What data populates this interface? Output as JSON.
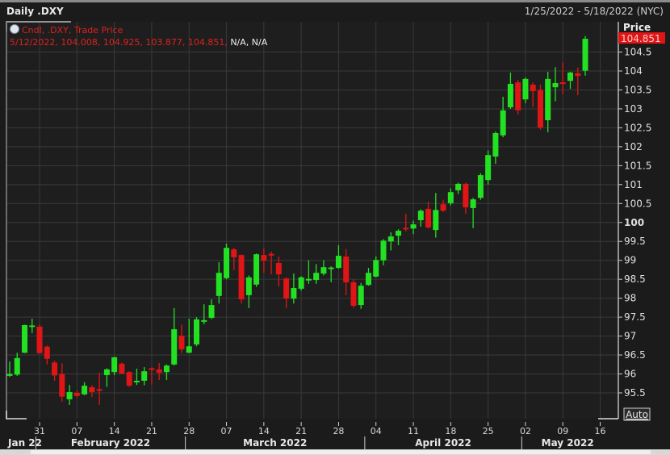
{
  "header": {
    "title": "Daily .DXY",
    "date_range": "1/25/2022 - 5/18/2022 (NYC)"
  },
  "legend": {
    "line1": "Cndl, .DXY, Trade Price",
    "line2_values": "5/12/2022, 104.008, 104.925, 103.877, 104.851,",
    "line2_na": "N/A, N/A",
    "icon": "clock-icon"
  },
  "axis": {
    "price_label": "Price",
    "last_price": "104.851",
    "auto_button": "Auto"
  },
  "colors": {
    "up": "#22e022",
    "down": "#e01515",
    "background": "#1e1e1e",
    "grid": "#3a3a3a",
    "last_price_bg": "#e01515"
  },
  "chart_data": {
    "type": "candlestick",
    "title": "Daily .DXY",
    "ylabel": "Price",
    "ylim": [
      95.0,
      105.0
    ],
    "grid": true,
    "yticks": [
      "95.5",
      "96",
      "96.5",
      "97",
      "97.5",
      "98",
      "98.5",
      "99",
      "99.5",
      "100",
      "100.5",
      "101",
      "101.5",
      "102",
      "102.5",
      "103",
      "103.5",
      "104",
      "104.5"
    ],
    "xticks": [
      {
        "date": "2022-01-31",
        "label": "31"
      },
      {
        "date": "2022-02-07",
        "label": "07"
      },
      {
        "date": "2022-02-14",
        "label": "14"
      },
      {
        "date": "2022-02-21",
        "label": "21"
      },
      {
        "date": "2022-02-28",
        "label": "28"
      },
      {
        "date": "2022-03-07",
        "label": "07"
      },
      {
        "date": "2022-03-14",
        "label": "14"
      },
      {
        "date": "2022-03-21",
        "label": "21"
      },
      {
        "date": "2022-03-28",
        "label": "28"
      },
      {
        "date": "2022-04-04",
        "label": "04"
      },
      {
        "date": "2022-04-11",
        "label": "11"
      },
      {
        "date": "2022-04-18",
        "label": "18"
      },
      {
        "date": "2022-04-25",
        "label": "25"
      },
      {
        "date": "2022-05-02",
        "label": "02"
      },
      {
        "date": "2022-05-09",
        "label": "09"
      },
      {
        "date": "2022-05-16",
        "label": "16"
      }
    ],
    "months": [
      {
        "label": "Jan 22",
        "start": "2022-01-25",
        "end": "2022-01-28"
      },
      {
        "label": "February 2022",
        "start": "2022-01-31",
        "end": "2022-02-25"
      },
      {
        "label": "March 2022",
        "start": "2022-02-28",
        "end": "2022-03-31"
      },
      {
        "label": "April 2022",
        "start": "2022-04-01",
        "end": "2022-04-29"
      },
      {
        "label": "May 2022",
        "start": "2022-05-02",
        "end": "2022-05-18"
      }
    ],
    "columns": [
      "date",
      "open",
      "high",
      "low",
      "close"
    ],
    "candles": [
      [
        "2022-01-25",
        95.95,
        96.33,
        95.92,
        96.0
      ],
      [
        "2022-01-26",
        95.98,
        96.56,
        95.95,
        96.42
      ],
      [
        "2022-01-27",
        96.56,
        97.3,
        96.55,
        97.29
      ],
      [
        "2022-01-28",
        97.25,
        97.46,
        97.08,
        97.28
      ],
      [
        "2022-01-31",
        97.25,
        97.31,
        96.53,
        96.55
      ],
      [
        "2022-02-01",
        96.72,
        96.75,
        96.25,
        96.4
      ],
      [
        "2022-02-02",
        96.3,
        96.35,
        95.82,
        95.96
      ],
      [
        "2022-02-03",
        96.0,
        96.28,
        95.27,
        95.4
      ],
      [
        "2022-02-04",
        95.33,
        95.71,
        95.18,
        95.52
      ],
      [
        "2022-02-07",
        95.5,
        95.55,
        95.38,
        95.42
      ],
      [
        "2022-02-08",
        95.46,
        95.78,
        95.44,
        95.69
      ],
      [
        "2022-02-09",
        95.65,
        95.7,
        95.39,
        95.52
      ],
      [
        "2022-02-10",
        95.6,
        96.03,
        95.18,
        95.56
      ],
      [
        "2022-02-11",
        95.97,
        96.15,
        95.66,
        96.12
      ],
      [
        "2022-02-14",
        96.05,
        96.46,
        95.97,
        96.44
      ],
      [
        "2022-02-15",
        96.27,
        96.3,
        96.0,
        96.01
      ],
      [
        "2022-02-16",
        96.05,
        96.07,
        95.66,
        95.69
      ],
      [
        "2022-02-17",
        95.78,
        96.14,
        95.71,
        95.82
      ],
      [
        "2022-02-18",
        95.82,
        96.18,
        95.7,
        96.07
      ],
      [
        "2022-02-21",
        96.15,
        96.17,
        95.72,
        96.12
      ],
      [
        "2022-02-22",
        96.12,
        96.29,
        95.84,
        96.03
      ],
      [
        "2022-02-23",
        96.05,
        96.25,
        95.84,
        96.22
      ],
      [
        "2022-02-24",
        96.25,
        97.74,
        96.22,
        97.18
      ],
      [
        "2022-02-25",
        97.01,
        97.3,
        96.55,
        96.65
      ],
      [
        "2022-02-28",
        96.56,
        97.46,
        96.55,
        96.73
      ],
      [
        "2022-03-01",
        96.78,
        97.5,
        96.73,
        97.44
      ],
      [
        "2022-03-02",
        97.38,
        97.84,
        97.31,
        97.42
      ],
      [
        "2022-03-03",
        97.48,
        97.97,
        97.45,
        97.82
      ],
      [
        "2022-03-04",
        98.06,
        98.95,
        97.86,
        98.67
      ],
      [
        "2022-03-07",
        98.53,
        99.44,
        98.5,
        99.33
      ],
      [
        "2022-03-08",
        99.29,
        99.33,
        98.74,
        99.08
      ],
      [
        "2022-03-09",
        99.14,
        99.16,
        97.86,
        97.97
      ],
      [
        "2022-03-10",
        98.08,
        98.6,
        97.74,
        98.55
      ],
      [
        "2022-03-11",
        98.36,
        99.18,
        98.3,
        99.16
      ],
      [
        "2022-03-14",
        99.14,
        99.31,
        98.67,
        98.99
      ],
      [
        "2022-03-15",
        99.17,
        99.23,
        98.63,
        99.14
      ],
      [
        "2022-03-16",
        98.93,
        99.1,
        98.31,
        98.63
      ],
      [
        "2022-03-17",
        98.52,
        98.55,
        97.74,
        97.99
      ],
      [
        "2022-03-18",
        97.99,
        98.65,
        97.86,
        98.27
      ],
      [
        "2022-03-21",
        98.25,
        98.58,
        98.2,
        98.55
      ],
      [
        "2022-03-22",
        98.48,
        99.0,
        98.38,
        98.51
      ],
      [
        "2022-03-23",
        98.48,
        98.9,
        98.38,
        98.67
      ],
      [
        "2022-03-24",
        98.65,
        99.0,
        98.6,
        98.82
      ],
      [
        "2022-03-25",
        98.78,
        98.84,
        98.42,
        98.81
      ],
      [
        "2022-03-28",
        98.8,
        99.4,
        98.78,
        99.12
      ],
      [
        "2022-03-29",
        99.1,
        99.3,
        98.08,
        98.42
      ],
      [
        "2022-03-30",
        98.42,
        98.5,
        97.75,
        97.8
      ],
      [
        "2022-03-31",
        97.82,
        98.4,
        97.72,
        98.33
      ],
      [
        "2022-04-01",
        98.35,
        98.8,
        98.33,
        98.67
      ],
      [
        "2022-04-04",
        98.57,
        99.1,
        98.55,
        99.01
      ],
      [
        "2022-04-05",
        99.0,
        99.56,
        98.87,
        99.52
      ],
      [
        "2022-04-06",
        99.5,
        99.74,
        99.26,
        99.63
      ],
      [
        "2022-04-07",
        99.65,
        99.82,
        99.4,
        99.78
      ],
      [
        "2022-04-08",
        99.86,
        100.23,
        99.76,
        99.82
      ],
      [
        "2022-04-11",
        99.84,
        100.05,
        99.69,
        99.95
      ],
      [
        "2022-04-12",
        100.06,
        100.35,
        99.89,
        100.31
      ],
      [
        "2022-04-13",
        100.36,
        100.55,
        99.84,
        99.87
      ],
      [
        "2022-04-14",
        99.8,
        100.78,
        99.6,
        100.33
      ],
      [
        "2022-04-15",
        100.48,
        100.6,
        100.28,
        100.31
      ],
      [
        "2022-04-18",
        100.51,
        100.9,
        100.45,
        100.8
      ],
      [
        "2022-04-19",
        100.85,
        101.05,
        100.75,
        101.02
      ],
      [
        "2022-04-20",
        101.02,
        101.05,
        100.23,
        100.4
      ],
      [
        "2022-04-21",
        100.38,
        100.65,
        99.85,
        100.61
      ],
      [
        "2022-04-22",
        100.65,
        101.3,
        100.6,
        101.25
      ],
      [
        "2022-04-25",
        101.12,
        101.9,
        101.0,
        101.78
      ],
      [
        "2022-04-26",
        101.74,
        102.4,
        101.55,
        102.36
      ],
      [
        "2022-04-27",
        102.3,
        103.32,
        102.25,
        102.96
      ],
      [
        "2022-04-28",
        103.04,
        103.96,
        103.0,
        103.66
      ],
      [
        "2022-04-29",
        103.7,
        103.76,
        102.85,
        102.96
      ],
      [
        "2022-05-02",
        103.25,
        103.83,
        103.15,
        103.79
      ],
      [
        "2022-05-03",
        103.64,
        103.7,
        103.04,
        103.47
      ],
      [
        "2022-05-04",
        103.49,
        103.64,
        102.45,
        102.51
      ],
      [
        "2022-05-05",
        102.7,
        103.98,
        102.38,
        103.79
      ],
      [
        "2022-05-06",
        103.57,
        104.1,
        103.2,
        103.68
      ],
      [
        "2022-05-09",
        103.7,
        104.23,
        103.38,
        103.67
      ],
      [
        "2022-05-10",
        103.74,
        103.98,
        103.53,
        103.96
      ],
      [
        "2022-05-11",
        103.94,
        104.09,
        103.36,
        103.87
      ],
      [
        "2022-05-12",
        104.008,
        104.925,
        103.877,
        104.851
      ]
    ]
  }
}
